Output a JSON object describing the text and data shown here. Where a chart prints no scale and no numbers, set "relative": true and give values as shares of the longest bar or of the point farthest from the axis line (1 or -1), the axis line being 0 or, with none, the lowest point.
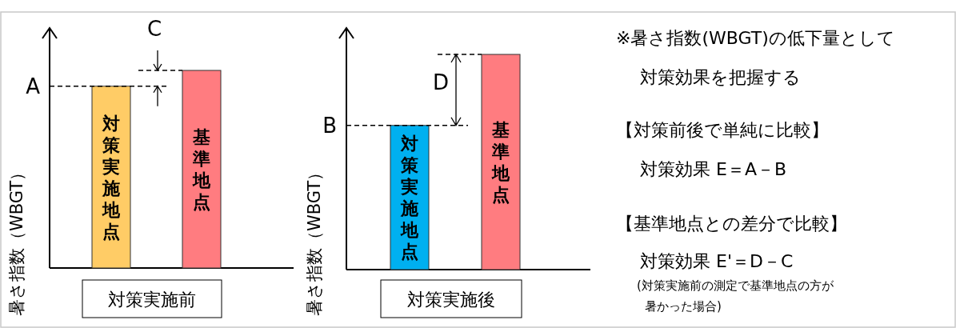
{
  "chart_data": [
    {
      "type": "bar",
      "relative": true,
      "categories": [
        "対策実施地点",
        "基準地点"
      ],
      "xlabel": "対策実施前",
      "ylabel": "暑さ指数（WBGT）",
      "colors": [
        "#ffcc66",
        "#ff7c80"
      ],
      "values": [
        0.92,
        1
      ],
      "ref_lines": [
        {
          "axis": "y",
          "value": 0.92,
          "label": "A",
          "line_style": "dashed"
        },
        {
          "axis": "y",
          "value": 1,
          "label": null,
          "line_style": "dashed"
        }
      ],
      "annotations": [
        "C"
      ]
    },
    {
      "type": "bar",
      "relative": true,
      "categories": [
        "対策実施地点",
        "基準地点"
      ],
      "xlabel": "対策実施後",
      "ylabel": "暑さ指数（WBGT）",
      "colors": [
        "#00b0f0",
        "#ff7c80"
      ],
      "values": [
        0.67,
        1
      ],
      "ref_lines": [
        {
          "axis": "y",
          "value": 0.67,
          "label": "B",
          "line_style": "dashed"
        },
        {
          "axis": "y",
          "value": 1,
          "label": null,
          "line_style": "dashed"
        }
      ],
      "annotations": [
        "D"
      ]
    },
    {
      "type": "other",
      "annotations": [
        "※暑さ指数(WBGT)の低下量として",
        "対策効果を把握する",
        "【対策前後で単純に比較】",
        "対策効果 E＝A－B",
        "【基準地点との差分で比較】",
        "対策効果 E'＝D－C",
        "(対策実施前の測定で基準地点の方が",
        "暑かった場合)"
      ]
    }
  ]
}
